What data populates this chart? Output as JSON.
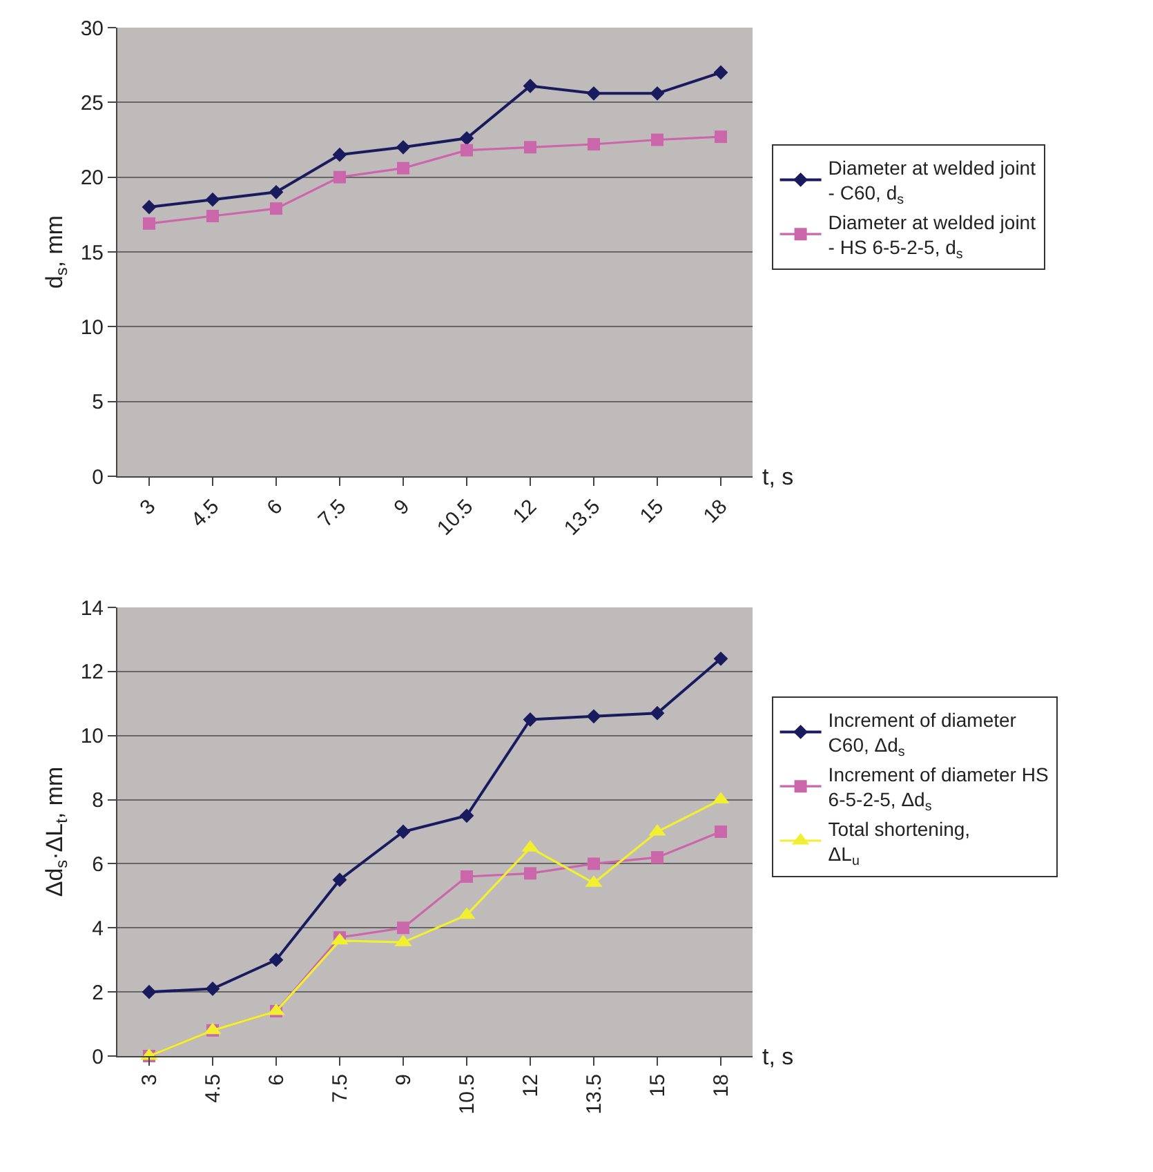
{
  "chart_data": [
    {
      "type": "line",
      "ylabel": "d$_{s}$, mm",
      "xlabel": "t, s",
      "categories": [
        "3",
        "4.5",
        "6",
        "7.5",
        "9",
        "10.5",
        "12",
        "13.5",
        "15",
        "18"
      ],
      "series": [
        {
          "name": "Diameter at welded joint - C60, d$_{s}$",
          "color": "#1a1a5e",
          "marker": "diamond",
          "values": [
            18,
            18.5,
            19,
            21.5,
            22,
            22.6,
            26.1,
            25.6,
            25.6,
            27
          ]
        },
        {
          "name": "Diameter at welded joint - HS 6-5-2-5, d$_{s}$",
          "color": "#cc66aa",
          "marker": "square",
          "values": [
            16.9,
            17.4,
            17.9,
            20,
            20.6,
            21.8,
            22,
            22.2,
            22.5,
            22.7
          ]
        }
      ],
      "ylim": [
        0,
        30
      ],
      "yticks": [
        0,
        5,
        10,
        15,
        20,
        25,
        30
      ],
      "grid": "y",
      "legend": "right",
      "line_style": "solid"
    },
    {
      "type": "line",
      "ylabel": "Δd$_{s}$·ΔL$_{t}$, mm",
      "xlabel": "t, s",
      "categories": [
        "3",
        "4.5",
        "6",
        "7.5",
        "9",
        "10.5",
        "12",
        "13.5",
        "15",
        "18"
      ],
      "series": [
        {
          "name": "Increment of diameter C60, Δd$_{s}$",
          "color": "#1a1a5e",
          "marker": "diamond",
          "values": [
            2,
            2.1,
            3,
            5.5,
            7,
            7.5,
            10.5,
            10.6,
            10.7,
            12.4
          ]
        },
        {
          "name": "Increment of diameter HS 6-5-2-5, Δd$_{s}$",
          "color": "#cc66aa",
          "marker": "square",
          "values": [
            0,
            0.8,
            1.4,
            3.7,
            4,
            5.6,
            5.7,
            6,
            6.2,
            7
          ]
        },
        {
          "name": "Total shortening, ΔL$_{u}$",
          "color": "#f0f030",
          "marker": "triangle",
          "values": [
            0,
            0.8,
            1.4,
            3.6,
            3.55,
            4.4,
            6.5,
            5.4,
            7,
            8
          ]
        }
      ],
      "ylim": [
        0,
        14
      ],
      "yticks": [
        0,
        2,
        4,
        6,
        8,
        10,
        12,
        14
      ],
      "grid": "y",
      "legend": "right",
      "line_style": "solid"
    }
  ]
}
